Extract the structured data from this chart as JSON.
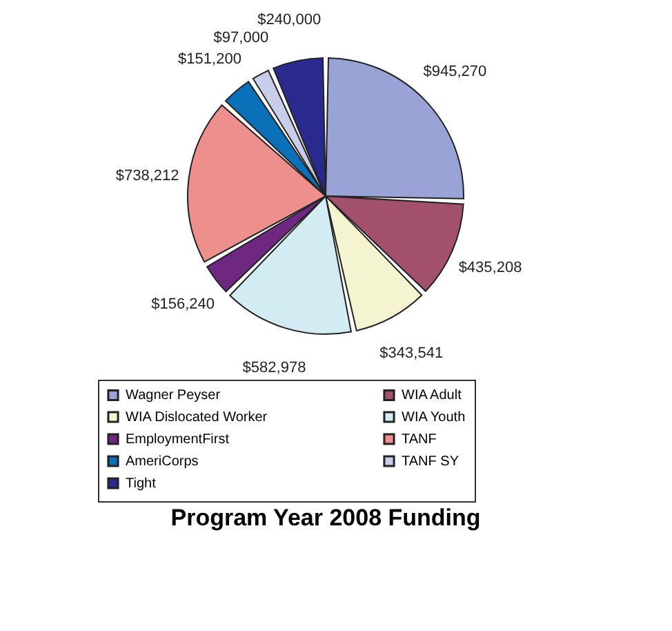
{
  "chart_data": {
    "type": "pie",
    "title": "Program Year 2008 Funding",
    "categories": [
      "Wagner Peyser",
      "WIA Adult",
      "WIA Dislocated Worker",
      "WIA Youth",
      "EmploymentFirst",
      "TANF",
      "AmeriCorps",
      "TANF SY",
      "Tight"
    ],
    "values": [
      945270,
      435208,
      343541,
      582978,
      156240,
      738212,
      151200,
      97000,
      240000
    ],
    "value_labels": [
      "$945,270",
      "$435,208",
      "$343,541",
      "$582,978",
      "$156,240",
      "$738,212",
      "$151,200",
      "$97,000",
      "$240,000"
    ],
    "colors": [
      "#9aa3d6",
      "#a3506f",
      "#f4f4d0",
      "#d3ecf4",
      "#6f2882",
      "#ec8f8d",
      "#0a70b8",
      "#c8cdea",
      "#2a2a8e"
    ],
    "legend": "bottom"
  }
}
